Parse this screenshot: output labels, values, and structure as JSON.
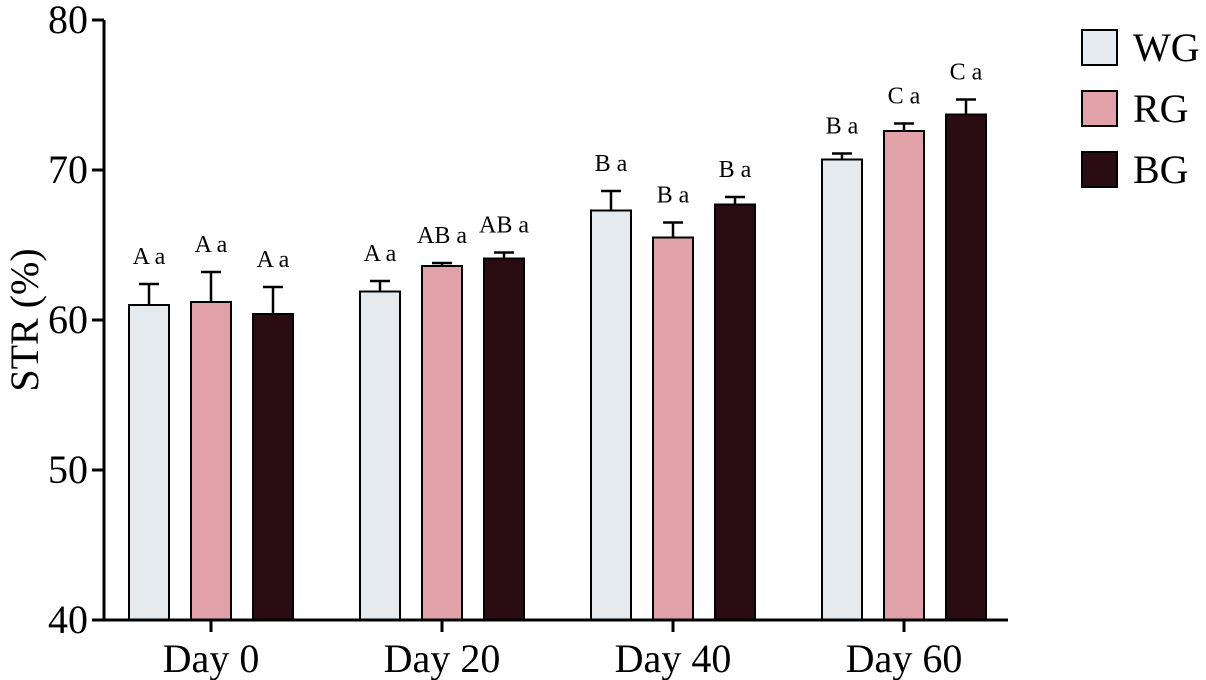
{
  "chart_data": {
    "type": "bar",
    "title": "",
    "xlabel": "",
    "ylabel": "STR (%)",
    "ylim": [
      40,
      80
    ],
    "yticks": [
      "40",
      "50",
      "60",
      "70",
      "80"
    ],
    "categories": [
      "Day 0",
      "Day 20",
      "Day 40",
      "Day 60"
    ],
    "series": [
      {
        "name": "WG",
        "color": "#e5eaee",
        "values": [
          61.0,
          61.9,
          67.3,
          70.7
        ],
        "errors": [
          1.4,
          0.7,
          1.3,
          0.4
        ],
        "labels": [
          "A a",
          "A a",
          "B a",
          "B a"
        ]
      },
      {
        "name": "RG",
        "color": "#e0a1a8",
        "values": [
          61.2,
          63.6,
          65.5,
          72.6
        ],
        "errors": [
          2.0,
          0.2,
          1.0,
          0.5
        ],
        "labels": [
          "A a",
          "AB a",
          "B a",
          "C a"
        ]
      },
      {
        "name": "BG",
        "color": "#2a0d13",
        "values": [
          60.4,
          64.1,
          67.7,
          73.7
        ],
        "errors": [
          1.8,
          0.4,
          0.5,
          1.0
        ],
        "labels": [
          "A a",
          "AB a",
          "B a",
          "C a"
        ]
      }
    ],
    "legend_position": "top-right",
    "grid": false
  }
}
